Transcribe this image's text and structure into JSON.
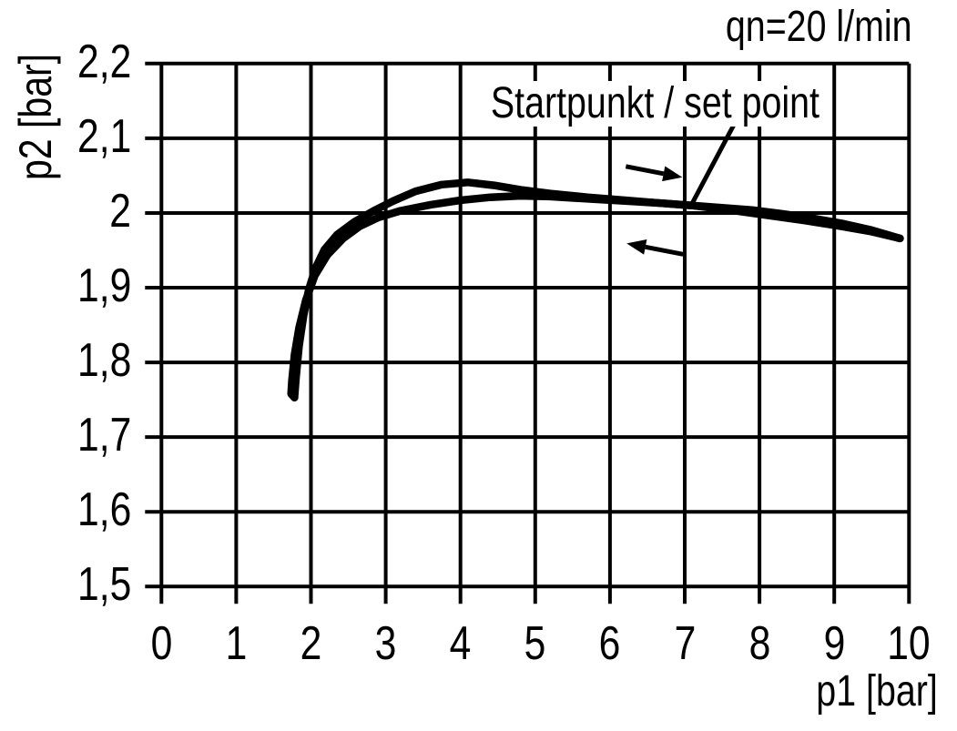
{
  "annotations": {
    "flow_rate": "qn=20 l/min",
    "set_point": "Startpunkt / set point"
  },
  "axes": {
    "x": {
      "label": "p1 [bar]",
      "min": 0,
      "max": 10,
      "ticks": [
        {
          "label": "0",
          "value": 0
        },
        {
          "label": "1",
          "value": 1
        },
        {
          "label": "2",
          "value": 2
        },
        {
          "label": "3",
          "value": 3
        },
        {
          "label": "4",
          "value": 4
        },
        {
          "label": "5",
          "value": 5
        },
        {
          "label": "6",
          "value": 6
        },
        {
          "label": "7",
          "value": 7
        },
        {
          "label": "8",
          "value": 8
        },
        {
          "label": "9",
          "value": 9
        },
        {
          "label": "10",
          "value": 10
        }
      ]
    },
    "y": {
      "label": "p2 [bar]",
      "min": 1.5,
      "max": 2.2,
      "ticks": [
        {
          "label": "2,2",
          "value": 2.2
        },
        {
          "label": "2,1",
          "value": 2.1
        },
        {
          "label": "2",
          "value": 2.0
        },
        {
          "label": "1,9",
          "value": 1.9
        },
        {
          "label": "1,8",
          "value": 1.8
        },
        {
          "label": "1,7",
          "value": 1.7
        },
        {
          "label": "1,6",
          "value": 1.6
        },
        {
          "label": "1,5",
          "value": 1.5
        }
      ]
    }
  },
  "chart_data": {
    "type": "line",
    "title": "qn=20 l/min",
    "xlabel": "p1 [bar]",
    "ylabel": "p2 [bar]",
    "xlim": [
      0,
      10
    ],
    "ylim": [
      1.5,
      2.2
    ],
    "grid": true,
    "legend": false,
    "line_color": "#000000",
    "description": "Hysteresis curve of secondary pressure p2 versus primary pressure p1 for a pressure regulator at qn=20 l/min; set point marked near p1=7.1, p2=2.01",
    "series": [
      {
        "name": "p1 increasing (up branch of hysteresis loop)",
        "direction": "right",
        "points": [
          [
            1.78,
            1.753
          ],
          [
            1.8,
            1.78
          ],
          [
            1.84,
            1.822
          ],
          [
            1.9,
            1.862
          ],
          [
            1.97,
            1.897
          ],
          [
            2.06,
            1.926
          ],
          [
            2.18,
            1.951
          ],
          [
            2.35,
            1.971
          ],
          [
            2.58,
            1.988
          ],
          [
            2.84,
            2.003
          ],
          [
            3.1,
            2.016
          ],
          [
            3.4,
            2.029
          ],
          [
            3.75,
            2.038
          ],
          [
            4.1,
            2.041
          ],
          [
            4.45,
            2.037
          ],
          [
            4.8,
            2.031
          ],
          [
            5.2,
            2.026
          ],
          [
            5.7,
            2.021
          ],
          [
            6.2,
            2.017
          ],
          [
            6.7,
            2.013
          ],
          [
            7.1,
            2.01
          ],
          [
            7.6,
            2.004
          ],
          [
            8.1,
            1.997
          ],
          [
            8.6,
            1.99
          ],
          [
            9.1,
            1.982
          ],
          [
            9.5,
            1.975
          ],
          [
            9.88,
            1.966
          ]
        ]
      },
      {
        "name": "p1 decreasing (down branch of hysteresis loop)",
        "direction": "left",
        "points": [
          [
            9.88,
            1.966
          ],
          [
            9.5,
            1.977
          ],
          [
            9.1,
            1.986
          ],
          [
            8.7,
            1.993
          ],
          [
            8.3,
            1.999
          ],
          [
            7.9,
            2.004
          ],
          [
            7.5,
            2.007
          ],
          [
            7.1,
            2.01
          ],
          [
            6.7,
            2.013
          ],
          [
            6.2,
            2.016
          ],
          [
            5.7,
            2.019
          ],
          [
            5.2,
            2.022
          ],
          [
            4.8,
            2.023
          ],
          [
            4.4,
            2.021
          ],
          [
            4.0,
            2.017
          ],
          [
            3.6,
            2.011
          ],
          [
            3.2,
            2.003
          ],
          [
            2.9,
            1.994
          ],
          [
            2.65,
            1.982
          ],
          [
            2.43,
            1.966
          ],
          [
            2.22,
            1.944
          ],
          [
            2.05,
            1.916
          ],
          [
            1.93,
            1.883
          ],
          [
            1.84,
            1.846
          ],
          [
            1.78,
            1.81
          ],
          [
            1.745,
            1.775
          ],
          [
            1.735,
            1.758
          ],
          [
            1.78,
            1.753
          ]
        ]
      }
    ],
    "annotations": [
      {
        "type": "label",
        "text": "qn=20 l/min",
        "position": "top-right"
      },
      {
        "type": "callout",
        "text": "Startpunkt / set point",
        "points_to": [
          7.1,
          2.013
        ]
      },
      {
        "type": "arrow",
        "direction": "right",
        "at": [
          6.59,
          2.055
        ]
      },
      {
        "type": "arrow",
        "direction": "left",
        "at": [
          6.6,
          1.952
        ]
      }
    ]
  },
  "colors": {
    "foreground": "#000000",
    "background": "#ffffff"
  }
}
